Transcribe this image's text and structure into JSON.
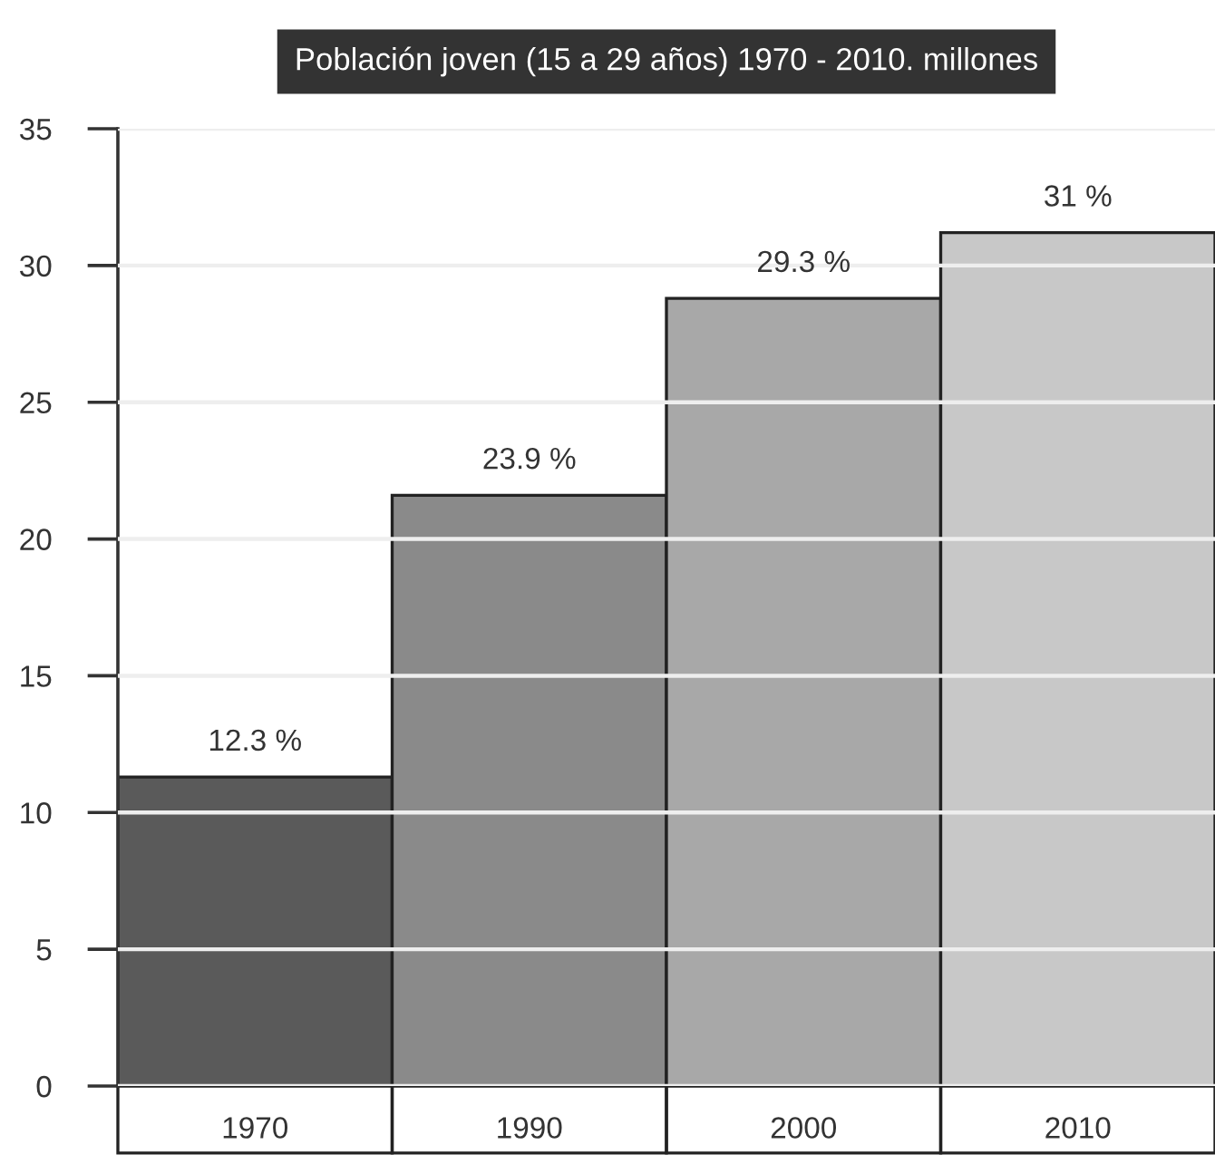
{
  "chart_data": {
    "type": "bar",
    "title": "Población joven (15 a 29 años) 1970 - 2010. millones",
    "categories": [
      "1970",
      "1990",
      "2000",
      "2010"
    ],
    "values": [
      11.3,
      21.6,
      28.8,
      31.2
    ],
    "colors": [
      "#5a5a5a",
      "#8a8a8a",
      "#a8a8a8",
      "#c8c8c8"
    ],
    "annotations": [
      {
        "text": "12.3 %",
        "x": "1970",
        "y": 11.3
      },
      {
        "text": "23.9 %",
        "x": "1990",
        "y": 21.6
      },
      {
        "text": "29.3 %",
        "x": "2000",
        "y": 28.8
      },
      {
        "text": "31 %",
        "x": "2010",
        "y": 31.2
      }
    ],
    "ylim": [
      0,
      35
    ],
    "yticks": [
      0,
      5,
      10,
      15,
      20,
      25,
      30,
      35
    ],
    "grid": "y"
  }
}
